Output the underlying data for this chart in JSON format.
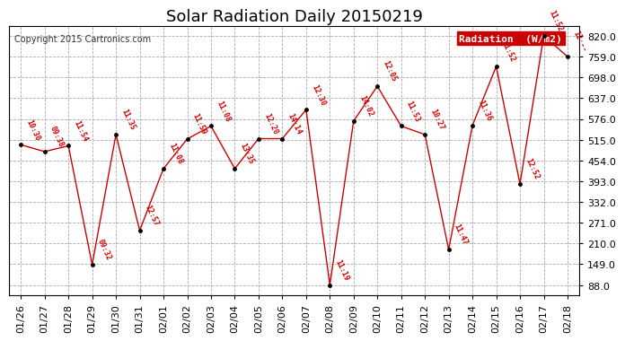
{
  "title": "Solar Radiation Daily 20150219",
  "copyright": "Copyright 2015 Cartronics.com",
  "legend_label": "Radiation  (W/m2)",
  "dates": [
    "01/26",
    "01/27",
    "01/28",
    "01/29",
    "01/30",
    "01/31",
    "02/01",
    "02/02",
    "02/03",
    "02/04",
    "02/05",
    "02/06",
    "02/07",
    "02/08",
    "02/09",
    "02/10",
    "02/11",
    "02/12",
    "02/13",
    "02/14",
    "02/15",
    "02/16",
    "02/17",
    "02/18"
  ],
  "values": [
    500,
    480,
    497,
    148,
    530,
    248,
    430,
    517,
    555,
    430,
    518,
    518,
    603,
    88,
    570,
    672,
    555,
    530,
    192,
    557,
    730,
    385,
    820,
    759
  ],
  "time_labels": [
    "10:30",
    "09:38",
    "11:54",
    "09:32",
    "11:35",
    "12:57",
    "11:08",
    "11:59",
    "11:08",
    "13:35",
    "12:20",
    "14:14",
    "12:30",
    "11:19",
    "14:02",
    "12:05",
    "11:53",
    "10:27",
    "11:47",
    "11:36",
    "11:52",
    "12:52",
    "11:52",
    "12:--"
  ],
  "line_color": "#cc0000",
  "dot_color": "#000000",
  "label_color": "#cc0000",
  "bg_color": "#ffffff",
  "grid_color": "#aaaaaa",
  "yticks": [
    88.0,
    149.0,
    210.0,
    271.0,
    332.0,
    393.0,
    454.0,
    515.0,
    576.0,
    637.0,
    698.0,
    759.0,
    820.0
  ],
  "ylim": [
    88.0,
    820.0
  ],
  "legend_bg": "#cc0000",
  "legend_text_color": "#ffffff",
  "title_fontsize": 13,
  "copyright_fontsize": 7,
  "tick_fontsize": 8,
  "label_fontsize": 6
}
